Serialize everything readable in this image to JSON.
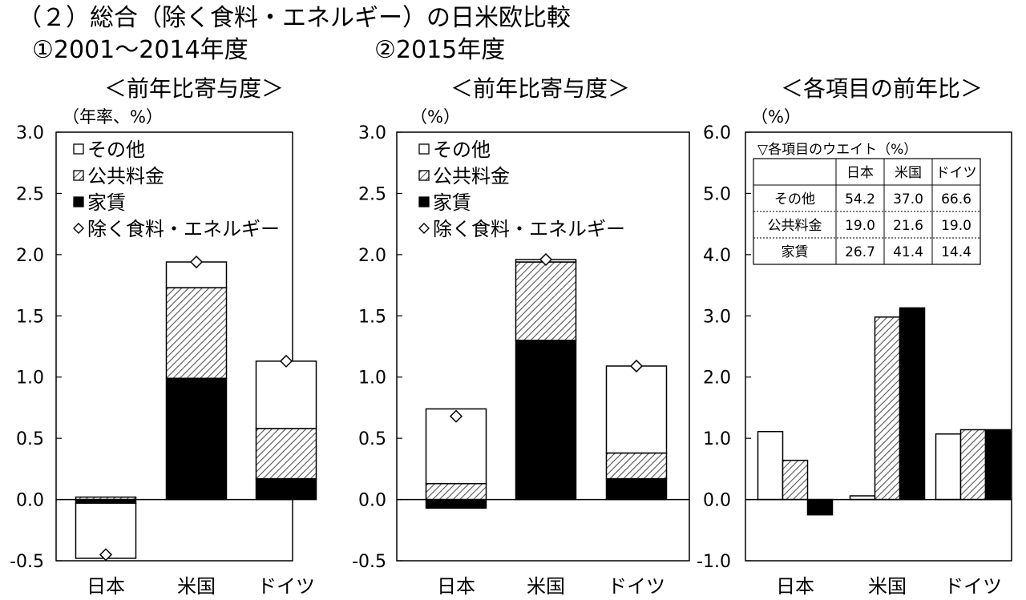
{
  "figure": {
    "title": "（２）総合（除く食料・エネルギー）の日米欧比較",
    "subtitle_1": "①2001～2014年度",
    "subtitle_2": "②2015年度"
  },
  "legend": {
    "other": "その他",
    "utilities": "公共料金",
    "rent": "家賃",
    "core": "除く食料・エネルギー"
  },
  "colors": {
    "other": "#ffffff",
    "utilities": "hatched-gray",
    "rent": "#000000",
    "axis": "#000000"
  },
  "weights_table": {
    "title": "▽各項目のウエイト（%）",
    "columns": [
      "日本",
      "米国",
      "ドイツ"
    ],
    "rows": [
      {
        "label": "その他",
        "values": [
          "54.2",
          "37.0",
          "66.6"
        ]
      },
      {
        "label": "公共料金",
        "values": [
          "19.0",
          "21.6",
          "19.0"
        ]
      },
      {
        "label": "家賃",
        "values": [
          "26.7",
          "41.4",
          "14.4"
        ]
      }
    ]
  },
  "chart_data": [
    {
      "type": "bar",
      "stacked": true,
      "title": "＜前年比寄与度＞",
      "ylabel": "（年率、%）",
      "ylim": [
        -0.5,
        3.0
      ],
      "yticks": [
        "3.0",
        "2.5",
        "2.0",
        "1.5",
        "1.0",
        "0.5",
        "0.0",
        "-0.5"
      ],
      "categories": [
        "日本",
        "米国",
        "ドイツ"
      ],
      "series": [
        {
          "name": "家賃",
          "values": [
            -0.03,
            0.99,
            0.17
          ]
        },
        {
          "name": "公共料金",
          "values": [
            0.02,
            0.74,
            0.41
          ]
        },
        {
          "name": "その他",
          "values": [
            -0.45,
            0.21,
            0.55
          ]
        }
      ],
      "markers": {
        "name": "除く食料・エネルギー",
        "values": [
          -0.45,
          1.94,
          1.13
        ]
      },
      "grid": false,
      "legend_position": "top-left"
    },
    {
      "type": "bar",
      "stacked": true,
      "title": "＜前年比寄与度＞",
      "ylabel": "（%）",
      "ylim": [
        -0.5,
        3.0
      ],
      "yticks": [
        "3.0",
        "2.5",
        "2.0",
        "1.5",
        "1.0",
        "0.5",
        "0.0",
        "-0.5"
      ],
      "categories": [
        "日本",
        "米国",
        "ドイツ"
      ],
      "series": [
        {
          "name": "家賃",
          "values": [
            -0.07,
            1.3,
            0.17
          ]
        },
        {
          "name": "公共料金",
          "values": [
            0.13,
            0.64,
            0.21
          ]
        },
        {
          "name": "その他",
          "values": [
            0.61,
            0.02,
            0.71
          ]
        }
      ],
      "markers": {
        "name": "除く食料・エネルギー",
        "values": [
          0.68,
          1.96,
          1.09
        ]
      },
      "grid": false,
      "legend_position": "top-left"
    },
    {
      "type": "bar",
      "stacked": false,
      "title": "＜各項目の前年比＞",
      "ylabel": "（%）",
      "ylim": [
        -1.0,
        6.0
      ],
      "yticks": [
        "6.0",
        "5.0",
        "4.0",
        "3.0",
        "2.0",
        "1.0",
        "0.0",
        "-1.0"
      ],
      "categories": [
        "日本",
        "米国",
        "ドイツ"
      ],
      "series": [
        {
          "name": "その他",
          "values": [
            1.11,
            0.06,
            1.07
          ]
        },
        {
          "name": "公共料金",
          "values": [
            0.64,
            2.98,
            1.14
          ]
        },
        {
          "name": "家賃",
          "values": [
            -0.25,
            3.13,
            1.14
          ]
        }
      ],
      "grid": false,
      "legend_position": "top-right"
    }
  ]
}
